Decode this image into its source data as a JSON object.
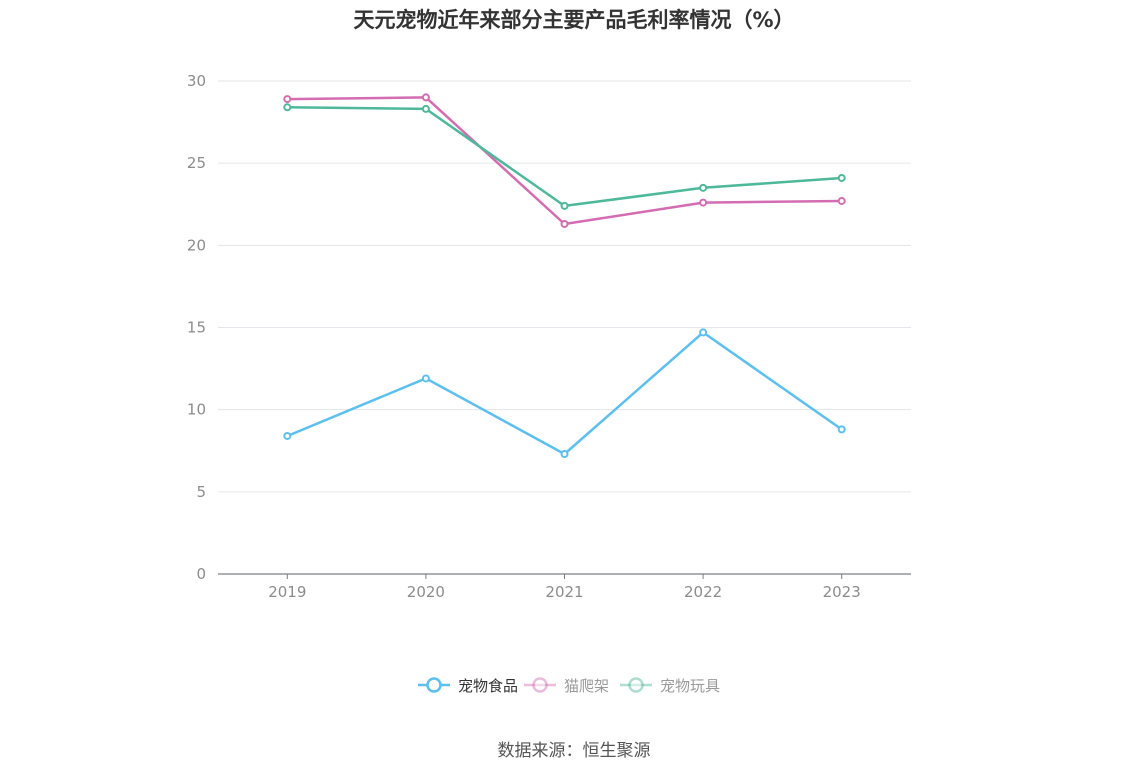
{
  "title": "天元宠物近年来部分主要产品毛利率情况（%）",
  "source": "数据来源：恒生聚源",
  "chart_data": {
    "type": "line",
    "title": "天元宠物近年来部分主要产品毛利率情况（%）",
    "categories": [
      "2019",
      "2020",
      "2021",
      "2022",
      "2023"
    ],
    "series": [
      {
        "name": "宠物食品",
        "color": "#5bc0f0",
        "values": [
          8.4,
          11.9,
          7.3,
          14.7,
          8.8
        ]
      },
      {
        "name": "猫爬架",
        "color": "#d46cb2",
        "values": [
          28.9,
          29.0,
          21.3,
          22.6,
          22.7
        ]
      },
      {
        "name": "宠物玩具",
        "color": "#4db89a",
        "values": [
          28.4,
          28.3,
          22.4,
          23.5,
          24.1
        ]
      }
    ],
    "ylim": [
      0,
      30
    ],
    "yticks": [
      0,
      5,
      10,
      15,
      20,
      25,
      30
    ],
    "grid": true,
    "legend": "bottom-center"
  }
}
